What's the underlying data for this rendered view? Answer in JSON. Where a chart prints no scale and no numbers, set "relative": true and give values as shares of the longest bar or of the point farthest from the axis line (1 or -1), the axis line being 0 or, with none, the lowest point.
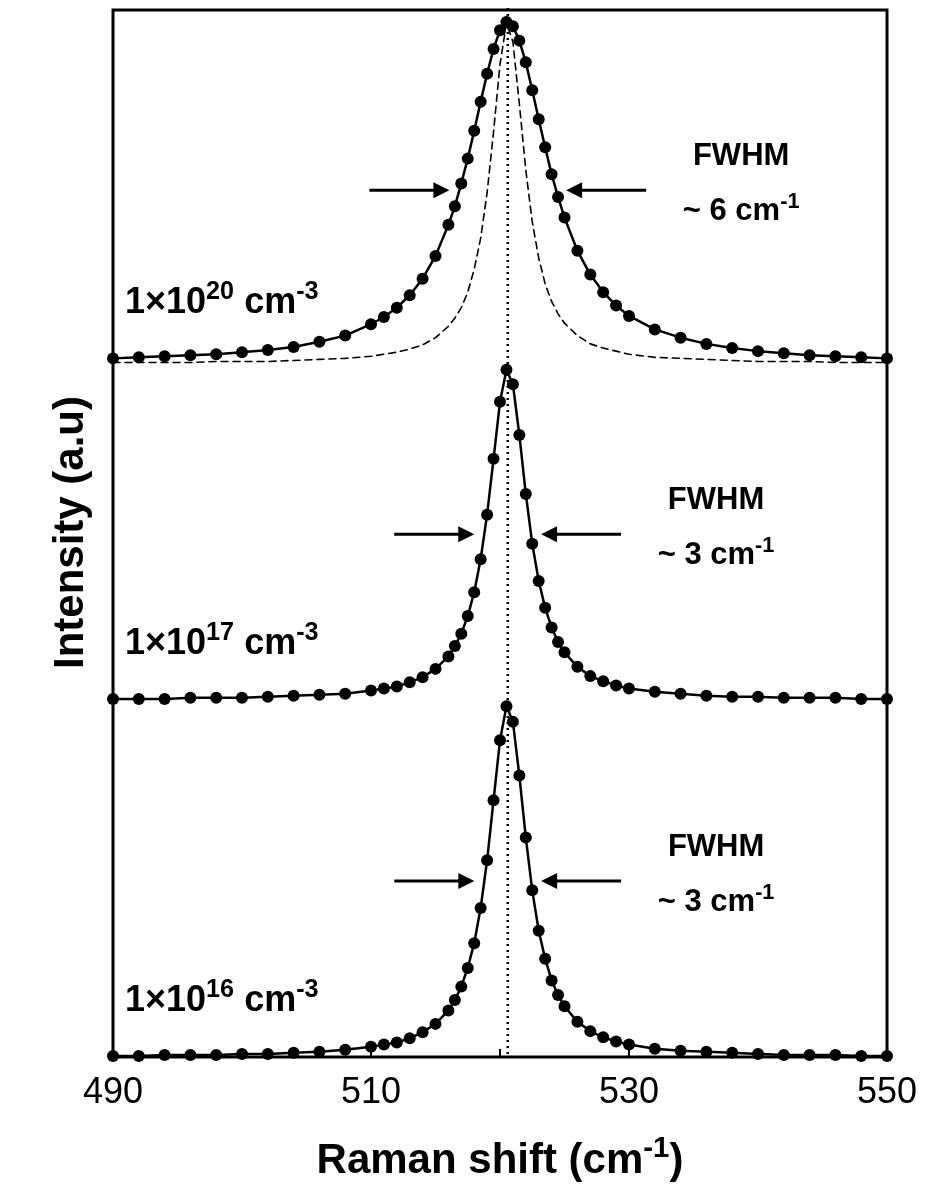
{
  "chart_data": {
    "type": "line",
    "xlabel": "Raman shift (cm$^{-1}$)",
    "ylabel": "Intensity (a.u)",
    "relative": true,
    "xlim": [
      490,
      550
    ],
    "xticks": [
      490,
      {
        "value": 500,
        "label": null
      },
      510,
      {
        "value": 520,
        "label": null
      },
      530,
      {
        "value": 540,
        "label": null
      },
      550
    ],
    "x": [
      490,
      492,
      494,
      496,
      498,
      500,
      502,
      504,
      506,
      508,
      510,
      511,
      512,
      513,
      514,
      515,
      516,
      516.5,
      517,
      517.5,
      518,
      518.5,
      519,
      519.5,
      520,
      520.5,
      521,
      521.5,
      522,
      522.5,
      523,
      523.5,
      524,
      524.5,
      525,
      526,
      527,
      528,
      529,
      530,
      532,
      534,
      536,
      538,
      540,
      542,
      544,
      546,
      548,
      550
    ],
    "marker": "circle",
    "line_style": "solid",
    "grid": false,
    "series": [
      {
        "color": "#000000",
        "values": [
          0.675,
          0.676,
          0.677,
          0.678,
          0.679,
          0.681,
          0.683,
          0.686,
          0.691,
          0.697,
          0.708,
          0.715,
          0.724,
          0.736,
          0.752,
          0.774,
          0.804,
          0.822,
          0.844,
          0.868,
          0.895,
          0.923,
          0.95,
          0.974,
          0.992,
          1.0,
          0.996,
          0.982,
          0.961,
          0.934,
          0.906,
          0.879,
          0.853,
          0.831,
          0.811,
          0.779,
          0.756,
          0.739,
          0.726,
          0.716,
          0.703,
          0.695,
          0.689,
          0.685,
          0.682,
          0.68,
          0.678,
          0.677,
          0.676,
          0.675
        ]
      },
      {
        "color": "#000000",
        "marker": "none",
        "line_style": "dashed",
        "values": [
          0.671,
          0.671,
          0.671,
          0.671,
          0.672,
          0.672,
          0.672,
          0.673,
          0.674,
          0.675,
          0.677,
          0.679,
          0.681,
          0.684,
          0.688,
          0.695,
          0.706,
          0.714,
          0.724,
          0.739,
          0.761,
          0.791,
          0.835,
          0.894,
          0.959,
          0.999,
          0.981,
          0.921,
          0.857,
          0.807,
          0.772,
          0.747,
          0.73,
          0.718,
          0.709,
          0.697,
          0.689,
          0.685,
          0.682,
          0.679,
          0.676,
          0.675,
          0.674,
          0.673,
          0.672,
          0.672,
          0.672,
          0.671,
          0.671,
          0.671
        ]
      },
      {
        "color": "#000000",
        "values": [
          0.346,
          0.346,
          0.346,
          0.347,
          0.347,
          0.347,
          0.348,
          0.349,
          0.35,
          0.351,
          0.354,
          0.356,
          0.358,
          0.362,
          0.367,
          0.375,
          0.387,
          0.397,
          0.409,
          0.426,
          0.449,
          0.481,
          0.524,
          0.578,
          0.633,
          0.664,
          0.65,
          0.601,
          0.544,
          0.496,
          0.46,
          0.434,
          0.415,
          0.401,
          0.391,
          0.377,
          0.368,
          0.363,
          0.359,
          0.356,
          0.353,
          0.351,
          0.349,
          0.348,
          0.348,
          0.347,
          0.347,
          0.347,
          0.346,
          0.346
        ]
      },
      {
        "color": "#000000",
        "values": [
          0.001,
          0.001,
          0.002,
          0.002,
          0.002,
          0.003,
          0.003,
          0.004,
          0.005,
          0.007,
          0.01,
          0.012,
          0.014,
          0.018,
          0.024,
          0.032,
          0.045,
          0.055,
          0.068,
          0.086,
          0.11,
          0.144,
          0.19,
          0.248,
          0.306,
          0.339,
          0.324,
          0.272,
          0.212,
          0.161,
          0.122,
          0.095,
          0.074,
          0.06,
          0.049,
          0.034,
          0.025,
          0.019,
          0.015,
          0.012,
          0.008,
          0.006,
          0.005,
          0.004,
          0.003,
          0.002,
          0.002,
          0.002,
          0.001,
          0.001
        ]
      }
    ],
    "ref_lines": [
      {
        "axis": "x",
        "value": 520.6,
        "line_style": "dotted",
        "color": "#000000"
      }
    ],
    "annotations": [
      "1×10$^{20}$ cm$^{-3}$",
      "FWHM\n~ 6 cm$^{-1}$",
      "1×10$^{17}$ cm$^{-3}$",
      "FWHM\n~ 3 cm$^{-1}$",
      "1×10$^{16}$ cm$^{-3}$",
      "FWHM\n~ 3 cm$^{-1}$"
    ]
  }
}
